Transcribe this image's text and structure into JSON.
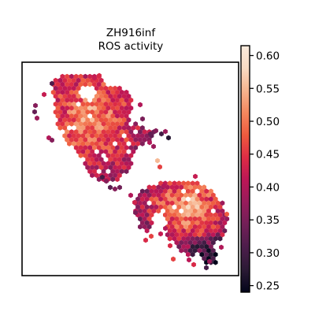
{
  "chart_data": {
    "type": "heatmap",
    "subtype": "hexbin spatial map",
    "title_line1": "ZH916inf",
    "title_line2": "ROS activity",
    "xlabel": "",
    "ylabel": "",
    "axis_ticks": false,
    "colormap": "rocket",
    "colorbar": {
      "range": [
        0.24,
        0.615
      ],
      "ticks": [
        0.25,
        0.3,
        0.35,
        0.4,
        0.45,
        0.5,
        0.55,
        0.6
      ],
      "tick_labels": [
        "0.25",
        "0.30",
        "0.35",
        "0.40",
        "0.45",
        "0.50",
        "0.55",
        "0.60"
      ]
    },
    "regions": [
      {
        "name": "upper tissue section",
        "value_range": [
          0.3,
          0.58
        ],
        "dominant": 0.5
      },
      {
        "name": "lower tissue section",
        "value_range": [
          0.28,
          0.6
        ],
        "dominant": 0.48
      }
    ]
  },
  "colors": {
    "rocket": [
      "#03051a",
      "#2b1a35",
      "#4c1d4b",
      "#711f57",
      "#971c5b",
      "#bc1656",
      "#dd2c45",
      "#ee5a3e",
      "#f4875e",
      "#f6b48f",
      "#f9dbc3",
      "#faebdd"
    ],
    "frame": "#000000",
    "background": "#ffffff"
  }
}
